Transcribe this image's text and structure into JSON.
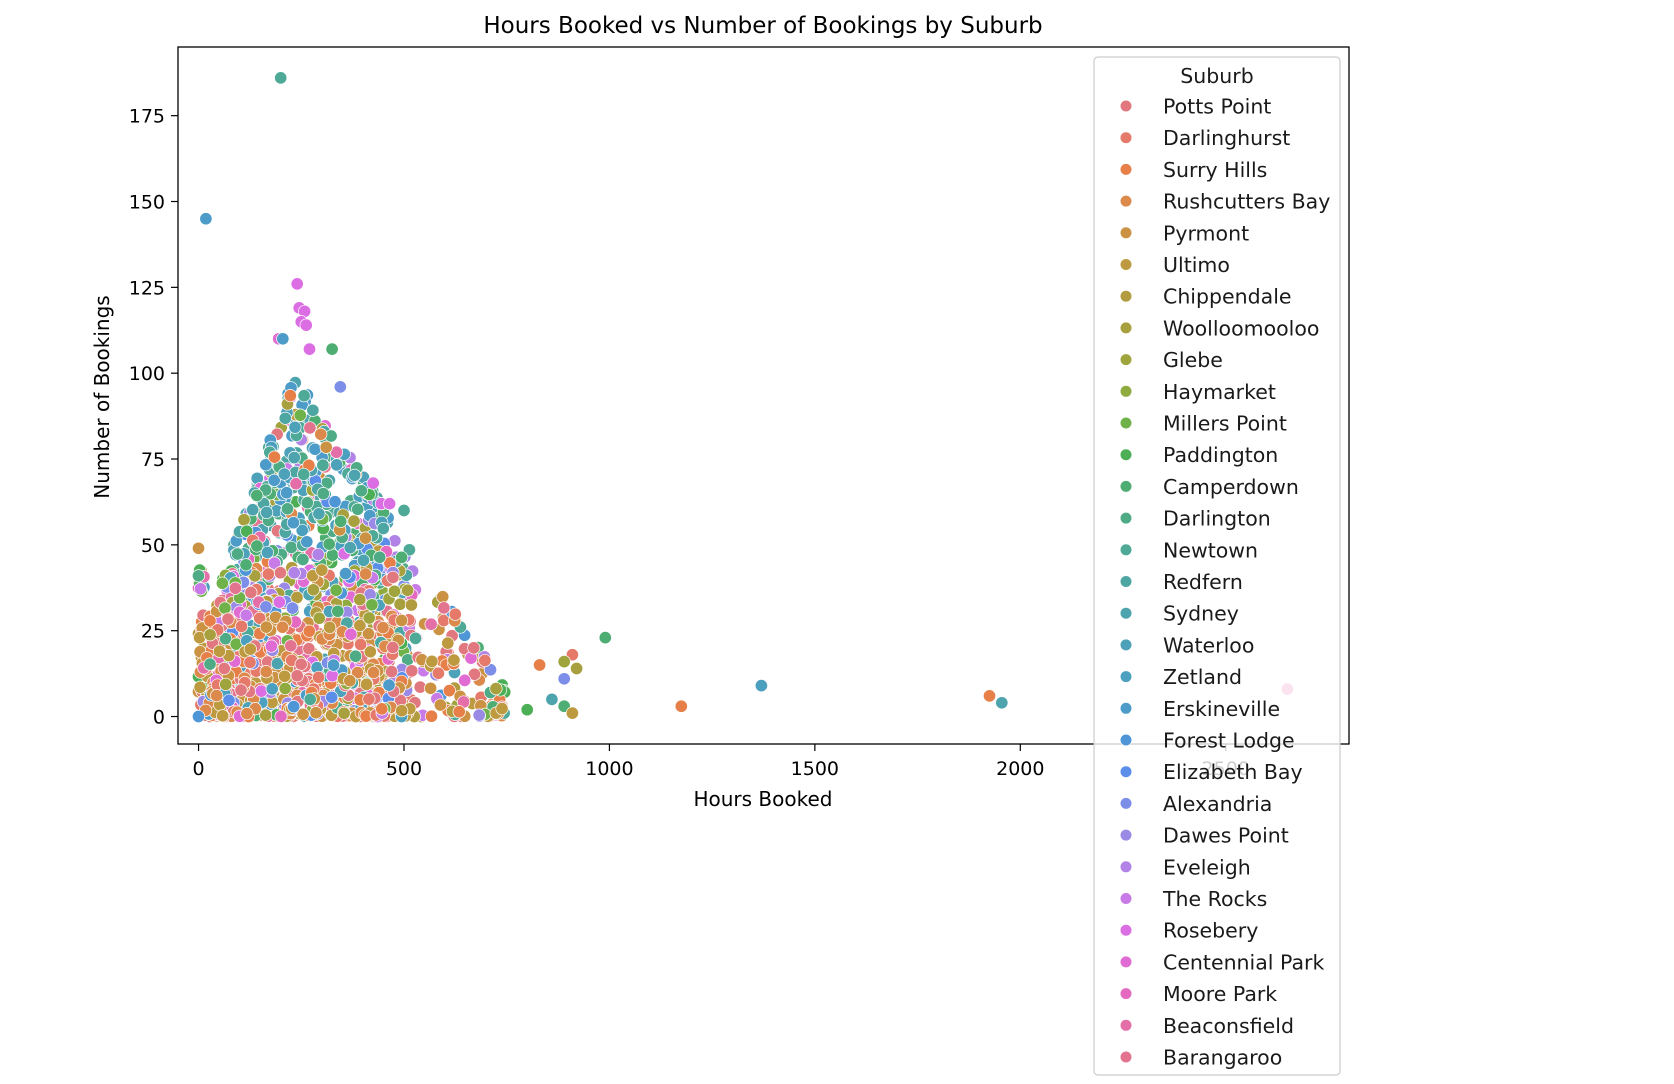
{
  "chart_data": {
    "type": "scatter",
    "title": "Hours Booked vs Number of Bookings by Suburb",
    "xlabel": "Hours Booked",
    "ylabel": "Number of Bookings",
    "xlim": [
      -50,
      2800
    ],
    "ylim": [
      -8,
      195
    ],
    "x_ticks": [
      0,
      500,
      1000,
      1500,
      2000,
      2500
    ],
    "x_tick_labels": [
      "0",
      "500",
      "1000",
      "1500",
      "2000",
      "2500"
    ],
    "y_ticks": [
      0,
      25,
      50,
      75,
      100,
      125,
      150,
      175
    ],
    "y_tick_labels": [
      "0",
      "25",
      "50",
      "75",
      "100",
      "125",
      "150",
      "175"
    ],
    "grid": false,
    "legend": {
      "title": "Suburb",
      "placement": "upper-right-outside-overlap",
      "entries": [
        {
          "name": "Potts Point",
          "color": "#e2787f"
        },
        {
          "name": "Darlinghurst",
          "color": "#e57a6a"
        },
        {
          "name": "Surry Hills",
          "color": "#e67f48"
        },
        {
          "name": "Rushcutters Bay",
          "color": "#db8a4b"
        },
        {
          "name": "Pyrmont",
          "color": "#cc9244"
        },
        {
          "name": "Ultimo",
          "color": "#bd9a3f"
        },
        {
          "name": "Chippendale",
          "color": "#b29c3f"
        },
        {
          "name": "Woolloomooloo",
          "color": "#a89f3e"
        },
        {
          "name": "Glebe",
          "color": "#9fa43d"
        },
        {
          "name": "Haymarket",
          "color": "#8fab3f"
        },
        {
          "name": "Millers Point",
          "color": "#6fb24a"
        },
        {
          "name": "Paddington",
          "color": "#4caf56"
        },
        {
          "name": "Camperdown",
          "color": "#4ead72"
        },
        {
          "name": "Darlington",
          "color": "#4fab85"
        },
        {
          "name": "Newtown",
          "color": "#4ea997"
        },
        {
          "name": "Redfern",
          "color": "#4ea6a3"
        },
        {
          "name": "Sydney",
          "color": "#4ea4ae"
        },
        {
          "name": "Waterloo",
          "color": "#4da1b8"
        },
        {
          "name": "Zetland",
          "color": "#4b9fbf"
        },
        {
          "name": "Erskineville",
          "color": "#4d9bc9"
        },
        {
          "name": "Forest Lodge",
          "color": "#4f96d6"
        },
        {
          "name": "Elizabeth Bay",
          "color": "#5b8ee8"
        },
        {
          "name": "Alexandria",
          "color": "#7d8ee8"
        },
        {
          "name": "Dawes Point",
          "color": "#9a8ae6"
        },
        {
          "name": "Eveleigh",
          "color": "#b183e6"
        },
        {
          "name": "The Rocks",
          "color": "#c87be6"
        },
        {
          "name": "Rosebery",
          "color": "#dc6ee4"
        },
        {
          "name": "Centennial Park",
          "color": "#e06bd3"
        },
        {
          "name": "Moore Park",
          "color": "#e36ac0"
        },
        {
          "name": "Beaconsfield",
          "color": "#e46ea8"
        },
        {
          "name": "Barangaroo",
          "color": "#e2748f"
        }
      ]
    },
    "outliers": [
      {
        "x": 200,
        "y": 186,
        "suburb": "Newtown"
      },
      {
        "x": 18,
        "y": 145,
        "suburb": "Erskineville"
      },
      {
        "x": 240,
        "y": 126,
        "suburb": "Rosebery"
      },
      {
        "x": 245,
        "y": 119,
        "suburb": "Rosebery"
      },
      {
        "x": 258,
        "y": 118,
        "suburb": "Rosebery"
      },
      {
        "x": 250,
        "y": 115,
        "suburb": "Rosebery"
      },
      {
        "x": 262,
        "y": 114,
        "suburb": "Rosebery"
      },
      {
        "x": 195,
        "y": 110,
        "suburb": "Centennial Park"
      },
      {
        "x": 205,
        "y": 110,
        "suburb": "Erskineville"
      },
      {
        "x": 325,
        "y": 107,
        "suburb": "Camperdown"
      },
      {
        "x": 270,
        "y": 107,
        "suburb": "Rosebery"
      },
      {
        "x": 345,
        "y": 96,
        "suburb": "Alexandria"
      },
      {
        "x": 425,
        "y": 68,
        "suburb": "Rosebery"
      },
      {
        "x": 445,
        "y": 62,
        "suburb": "Rosebery"
      },
      {
        "x": 465,
        "y": 62,
        "suburb": "Rosebery"
      },
      {
        "x": 500,
        "y": 60,
        "suburb": "Newtown"
      },
      {
        "x": 990,
        "y": 23,
        "suburb": "Camperdown"
      },
      {
        "x": 670,
        "y": 20,
        "suburb": "Potts Point"
      },
      {
        "x": 910,
        "y": 18,
        "suburb": "Darlinghurst"
      },
      {
        "x": 890,
        "y": 16,
        "suburb": "Glebe"
      },
      {
        "x": 830,
        "y": 15,
        "suburb": "Surry Hills"
      },
      {
        "x": 920,
        "y": 14,
        "suburb": "Woolloomooloo"
      },
      {
        "x": 890,
        "y": 11,
        "suburb": "Alexandria"
      },
      {
        "x": 1370,
        "y": 9,
        "suburb": "Zetland"
      },
      {
        "x": 860,
        "y": 5,
        "suburb": "Sydney"
      },
      {
        "x": 890,
        "y": 3,
        "suburb": "Camperdown"
      },
      {
        "x": 910,
        "y": 1,
        "suburb": "Ultimo"
      },
      {
        "x": 800,
        "y": 2,
        "suburb": "Paddington"
      },
      {
        "x": 1175,
        "y": 3,
        "suburb": "Surry Hills"
      },
      {
        "x": 1925,
        "y": 6,
        "suburb": "Surry Hills"
      },
      {
        "x": 1955,
        "y": 4,
        "suburb": "Sydney"
      },
      {
        "x": 2650,
        "y": 8,
        "suburb": "Beaconsfield"
      },
      {
        "x": 0,
        "y": 49,
        "suburb": "Pyrmont"
      },
      {
        "x": 0,
        "y": 41,
        "suburb": "Darlington"
      },
      {
        "x": 0,
        "y": 0,
        "suburb": "Forest Lodge"
      }
    ],
    "clusters": [
      {
        "note": "dense bulk of points",
        "x_range": [
          0,
          750
        ],
        "y_range": [
          0,
          100
        ],
        "peak_x": 230,
        "peak_y": 100,
        "tail_end_x": 750
      }
    ]
  }
}
